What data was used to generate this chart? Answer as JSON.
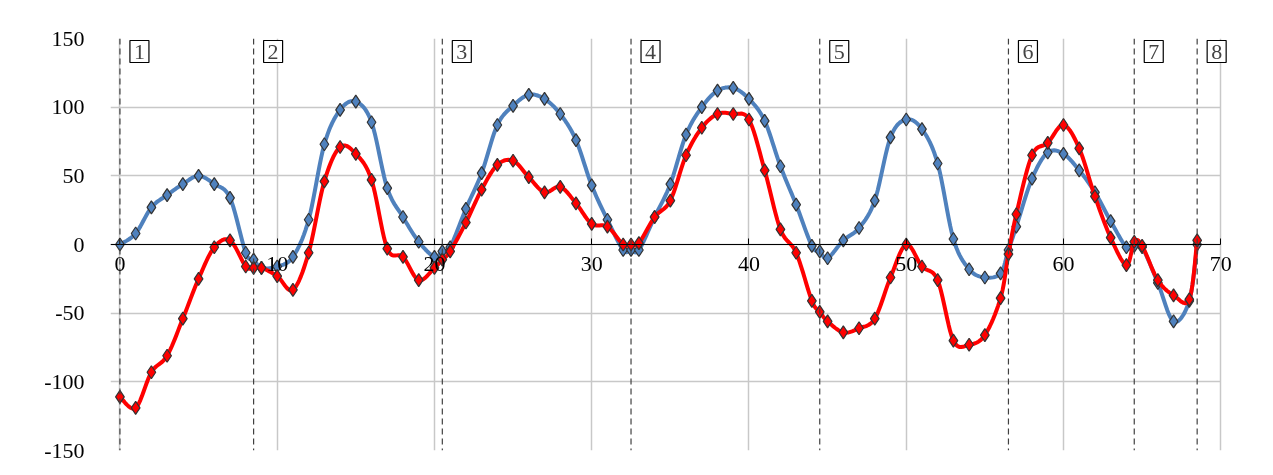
{
  "chart_data": {
    "type": "line",
    "x": [
      0,
      1,
      2,
      3,
      4,
      5,
      6,
      7,
      8,
      8.5,
      9,
      10,
      11,
      12,
      13,
      14,
      15,
      16,
      17,
      18,
      19,
      20,
      20.5,
      21,
      22,
      23,
      24,
      25,
      26,
      27,
      28,
      29,
      30,
      31,
      32,
      32.5,
      33,
      34,
      35,
      36,
      37,
      38,
      39,
      40,
      41,
      42,
      43,
      44,
      44.5,
      45,
      46,
      47,
      48,
      49,
      50,
      51,
      52,
      53,
      54,
      55,
      56,
      56.5,
      57,
      58,
      59,
      60,
      61,
      62,
      63,
      64,
      64.5,
      65,
      66,
      67,
      68,
      68.5
    ],
    "series": [
      {
        "color": "#4f81bd",
        "values": [
          0,
          8,
          27,
          36,
          44,
          50,
          44,
          34,
          -6,
          -11,
          -17,
          -16,
          -9,
          18,
          73,
          98,
          104,
          89,
          41,
          20,
          2,
          -9,
          -5,
          -2,
          26,
          52,
          87,
          101,
          109,
          106,
          95,
          76,
          43,
          18,
          -4,
          -4,
          -4,
          20,
          44,
          80,
          100,
          112,
          114,
          106,
          90,
          57,
          29,
          -1,
          -5,
          -10,
          3,
          12,
          32,
          78,
          91,
          84,
          59,
          4,
          -18,
          -24,
          -21,
          -4,
          13,
          48,
          67,
          66,
          54,
          38,
          17,
          -2,
          -1,
          -2,
          -28,
          -56,
          -41,
          0
        ]
      },
      {
        "color": "#ff0000",
        "values": [
          -111,
          -119,
          -93,
          -81,
          -54,
          -25,
          -2,
          3,
          -16,
          -17,
          -17,
          -23,
          -33,
          -6,
          46,
          71,
          66,
          47,
          -3,
          -9,
          -26,
          -17,
          -11,
          -5,
          16,
          40,
          58,
          61,
          49,
          38,
          42,
          30,
          15,
          13,
          0,
          0,
          1,
          20,
          32,
          65,
          85,
          95,
          95,
          91,
          54,
          11,
          -6,
          -41,
          -49,
          -56,
          -64,
          -61,
          -54,
          -24,
          0,
          -16,
          -26,
          -70,
          -73,
          -66,
          -39,
          -7,
          22,
          65,
          74,
          87,
          70,
          35,
          5,
          -15,
          2,
          -1,
          -26,
          -37,
          -40,
          3
        ]
      }
    ],
    "xlim": [
      -0.6,
      70
    ],
    "ylim": [
      -150,
      150
    ],
    "xticks": [
      0,
      10,
      20,
      30,
      40,
      50,
      60,
      70
    ],
    "yticks": [
      -150,
      -100,
      -50,
      0,
      50,
      100,
      150
    ],
    "grid": true,
    "marker": "diamond",
    "line_style": "solid",
    "annotations": [
      "1",
      "2",
      "3",
      "4",
      "5",
      "6",
      "7",
      "8"
    ],
    "ref_lines": [
      {
        "axis": "x",
        "value": 0,
        "color": "#404040",
        "line_style": "dashed"
      },
      {
        "axis": "x",
        "value": 8.5,
        "color": "#404040",
        "line_style": "dashed"
      },
      {
        "axis": "x",
        "value": 20.5,
        "color": "#404040",
        "line_style": "dashed"
      },
      {
        "axis": "x",
        "value": 32.5,
        "color": "#404040",
        "line_style": "dashed"
      },
      {
        "axis": "x",
        "value": 44.5,
        "color": "#404040",
        "line_style": "dashed"
      },
      {
        "axis": "x",
        "value": 56.5,
        "color": "#404040",
        "line_style": "dashed"
      },
      {
        "axis": "x",
        "value": 64.5,
        "color": "#404040",
        "line_style": "dashed"
      },
      {
        "axis": "x",
        "value": 68.5,
        "color": "#404040",
        "line_style": "dashed"
      }
    ]
  }
}
